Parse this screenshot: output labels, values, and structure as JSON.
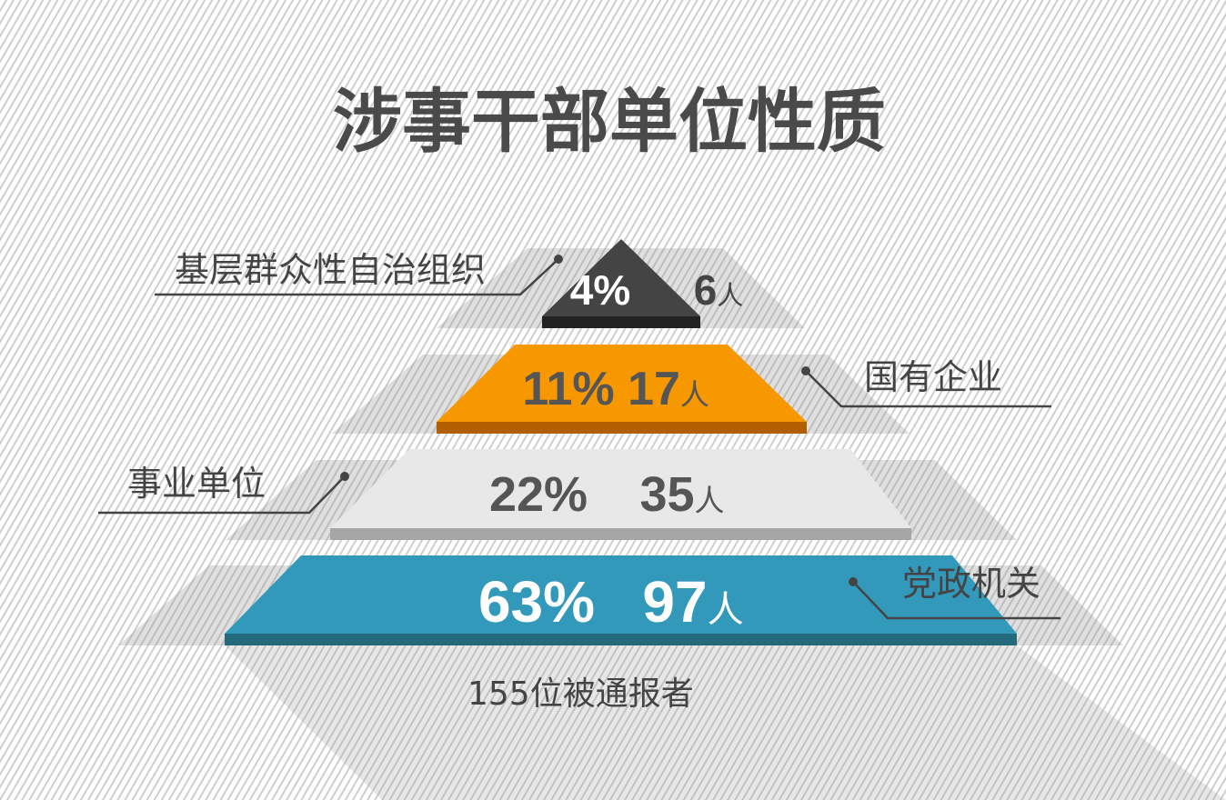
{
  "chart_data": {
    "type": "pyramid",
    "title": "涉事干部单位性质",
    "unit": "人",
    "footer": "155位被通报者",
    "categories": [
      "基层群众性自治组织",
      "国有企业",
      "事业单位",
      "党政机关"
    ],
    "percent": [
      4,
      11,
      22,
      63
    ],
    "counts": [
      6,
      17,
      35,
      97
    ],
    "colors": [
      "#444444",
      "#f79800",
      "#e8e8e8",
      "#3399bb"
    ],
    "band_colors": [
      "#222222",
      "#b15f00",
      "#a5a5a5",
      "#236a7c"
    ],
    "text_colors": [
      "#ffffff",
      "#555555",
      "#555555",
      "#ffffff"
    ]
  }
}
